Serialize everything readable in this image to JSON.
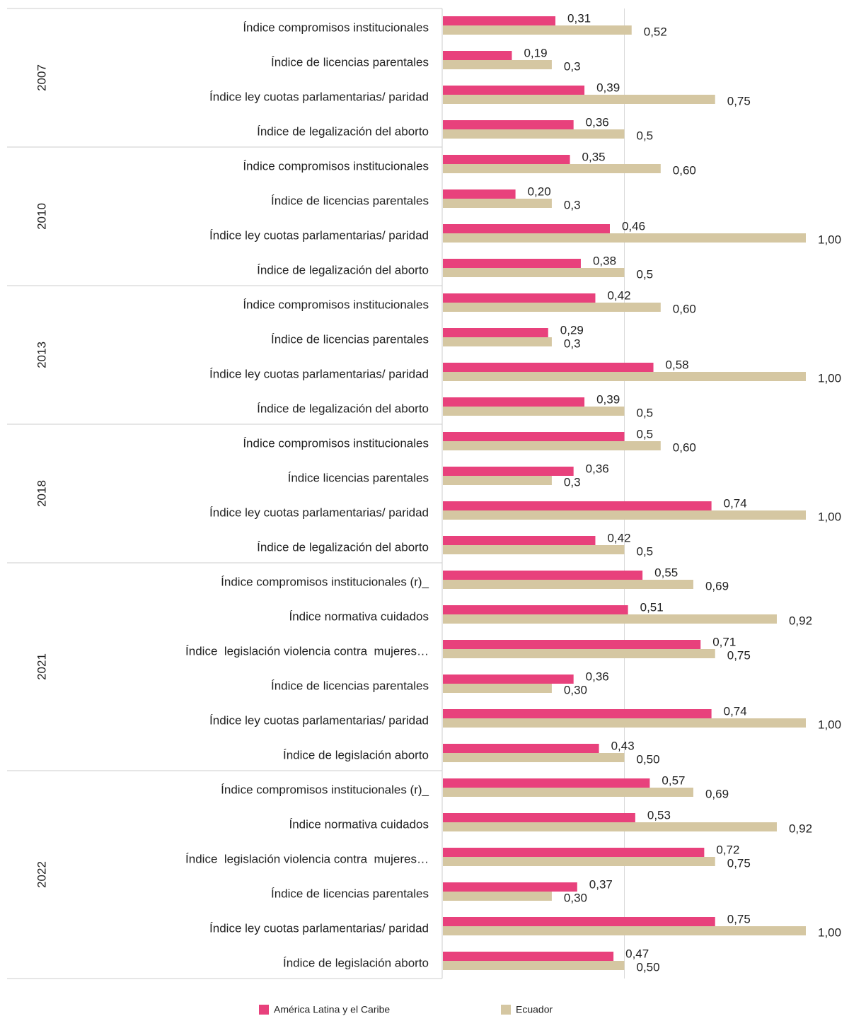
{
  "chart_data": {
    "type": "bar",
    "orientation": "horizontal",
    "groups": [
      {
        "name": "2007",
        "categories": [
          "Índice compromisos institucionales",
          "Índice de licencias parentales",
          "Índice ley cuotas parlamentarias/ paridad",
          "Índice de legalización del aborto"
        ]
      },
      {
        "name": "2010",
        "categories": [
          "Índice compromisos institucionales",
          "Índice de licencias parentales",
          "Índice ley cuotas parlamentarias/ paridad",
          "Índice de legalización del aborto"
        ]
      },
      {
        "name": "2013",
        "categories": [
          "Índice compromisos institucionales",
          "Índice de licencias parentales",
          "Índice ley cuotas parlamentarias/ paridad",
          "Índice de legalización del aborto"
        ]
      },
      {
        "name": "2018",
        "categories": [
          "Índice compromisos institucionales",
          "Índice licencias parentales",
          "Índice ley cuotas parlamentarias/ paridad",
          "Índice de legalización del aborto"
        ]
      },
      {
        "name": "2021",
        "categories": [
          "Índice compromisos institucionales (r)_",
          "Índice normativa cuidados",
          "Índice  legislación violencia contra  mujeres…",
          "Índice de licencias parentales",
          "Índice ley cuotas parlamentarias/ paridad",
          "Índice de legislación aborto"
        ]
      },
      {
        "name": "2022",
        "categories": [
          "Índice compromisos institucionales (r)_",
          "Índice normativa cuidados",
          "Índice  legislación violencia contra  mujeres…",
          "Índice de licencias parentales",
          "Índice ley cuotas parlamentarias/ paridad",
          "Índice de legislación aborto"
        ]
      }
    ],
    "series": [
      {
        "name": "América Latina y el Caribe",
        "color": "#e8417c",
        "values": [
          0.31,
          0.19,
          0.39,
          0.36,
          0.35,
          0.2,
          0.46,
          0.38,
          0.42,
          0.29,
          0.58,
          0.39,
          0.5,
          0.36,
          0.74,
          0.42,
          0.55,
          0.51,
          0.71,
          0.36,
          0.74,
          0.43,
          0.57,
          0.53,
          0.72,
          0.37,
          0.75,
          0.47
        ],
        "value_labels": [
          "0,31",
          "0,19",
          "0,39",
          "0,36",
          "0,35",
          "0,20",
          "0,46",
          "0,38",
          "0,42",
          "0,29",
          "0,58",
          "0,39",
          "0,5",
          "0,36",
          "0,74",
          "0,42",
          "0,55",
          "0,51",
          "0,71",
          "0,36",
          "0,74",
          "0,43",
          "0,57",
          "0,53",
          "0,72",
          "0,37",
          "0,75",
          "0,47"
        ]
      },
      {
        "name": "Ecuador",
        "color": "#d5c7a2",
        "values": [
          0.52,
          0.3,
          0.75,
          0.5,
          0.6,
          0.3,
          1.0,
          0.5,
          0.6,
          0.3,
          1.0,
          0.5,
          0.6,
          0.3,
          1.0,
          0.5,
          0.69,
          0.92,
          0.75,
          0.3,
          1.0,
          0.5,
          0.69,
          0.92,
          0.75,
          0.3,
          1.0,
          0.5
        ],
        "value_labels": [
          "0,52",
          "0,3",
          "0,75",
          "0,5",
          "0,60",
          "0,3",
          "1,00",
          "0,5",
          "0,60",
          "0,3",
          "1,00",
          "0,5",
          "0,60",
          "0,3",
          "1,00",
          "0,5",
          "0,69",
          "0,92",
          "0,75",
          "0,30",
          "1,00",
          "0,50",
          "0,69",
          "0,92",
          "0,75",
          "0,30",
          "1,00",
          "0,50"
        ]
      }
    ],
    "xlim": [
      0,
      1
    ],
    "xticks": [
      0.5
    ],
    "show_tick_labels": false,
    "grid": true,
    "legend": "bottom"
  }
}
